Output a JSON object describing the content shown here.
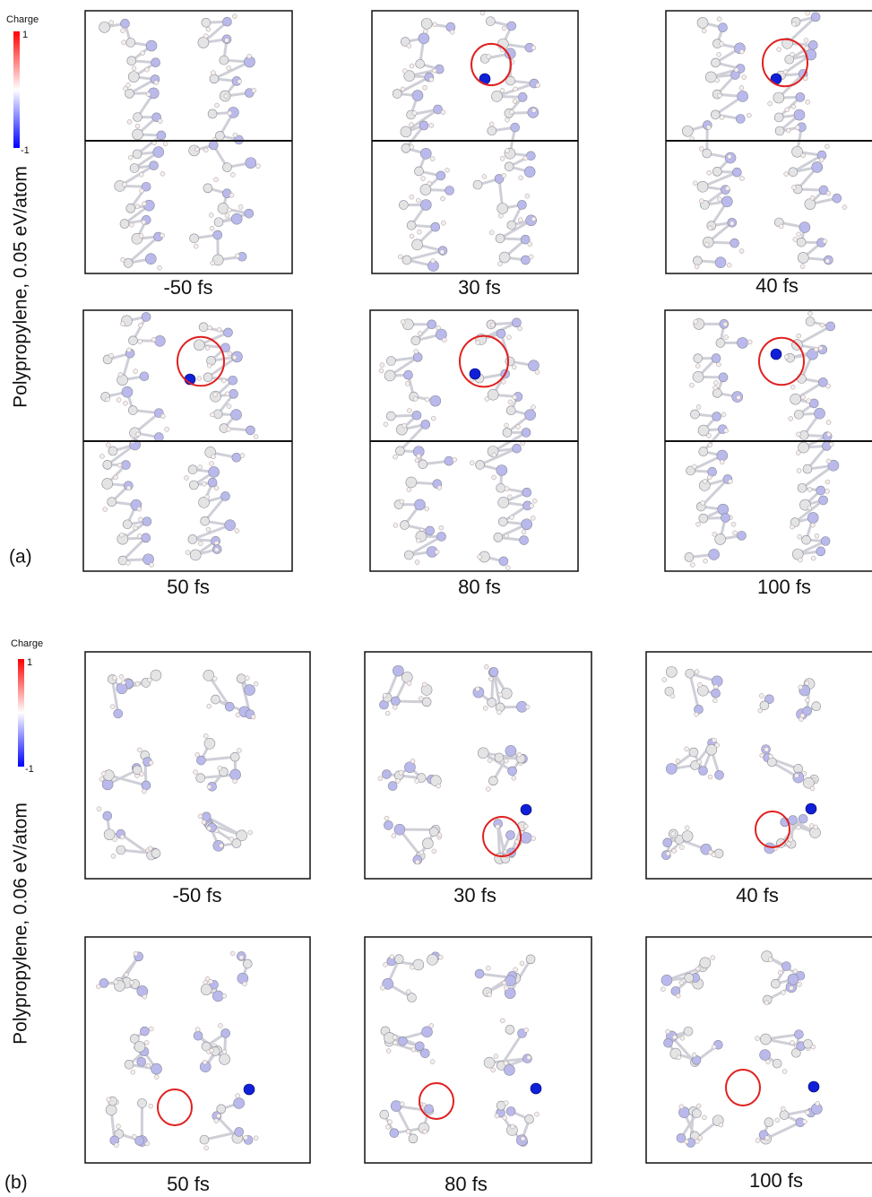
{
  "panels": [
    {
      "label": "(a)",
      "ylabel": "Polypropylene, 0.05 eV/atom",
      "colorbar": {
        "title": "Charge",
        "max": "1",
        "min": "-1"
      },
      "frames": [
        "-50 fs",
        "30 fs",
        "40 fs",
        "50 fs",
        "80 fs",
        "100 fs"
      ]
    },
    {
      "label": "(b)",
      "ylabel": "Polypropylene, 0.06 eV/atom",
      "colorbar": {
        "title": "Charge",
        "max": "1",
        "min": "-1"
      },
      "frames": [
        "-50 fs",
        "30 fs",
        "40 fs",
        "50 fs",
        "80 fs",
        "100 fs"
      ]
    }
  ]
}
